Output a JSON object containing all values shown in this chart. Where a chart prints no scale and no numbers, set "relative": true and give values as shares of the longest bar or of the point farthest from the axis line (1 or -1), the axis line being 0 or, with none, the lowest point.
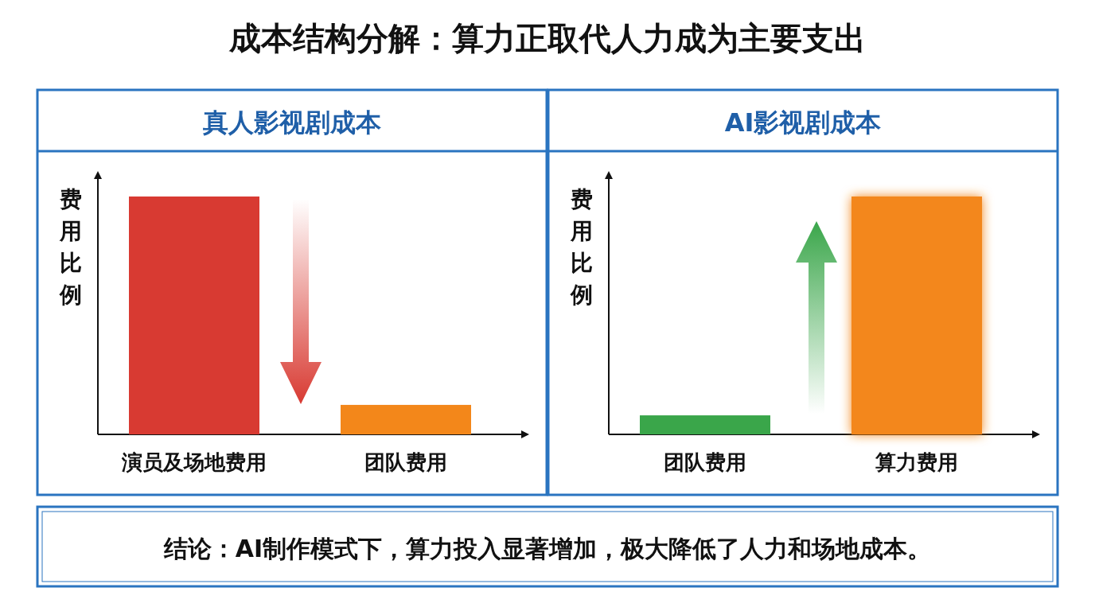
{
  "chart_data": [
    {
      "type": "other",
      "title": "成本结构分解：算力正取代人力成为主要支出"
    },
    {
      "type": "bar",
      "title": "真人影视剧成本",
      "ylabel": "费用比例",
      "relative": true,
      "categories": [
        "演员及场地费用",
        "团队费用"
      ],
      "values": [
        1,
        0.124
      ],
      "colors": [
        "#d83a32",
        "#f3871a"
      ]
    },
    {
      "type": "bar",
      "title": "AI影视剧成本",
      "ylabel": "费用比例",
      "relative": true,
      "categories": [
        "团队费用",
        "算力费用"
      ],
      "values": [
        0.08,
        1
      ],
      "colors": [
        "#3aa64a",
        "#f3871a"
      ]
    },
    {
      "type": "other",
      "annotations": [
        "结论：AI制作模式下，算力投入显著增加，极大降低了人力和场地成本。"
      ]
    }
  ]
}
